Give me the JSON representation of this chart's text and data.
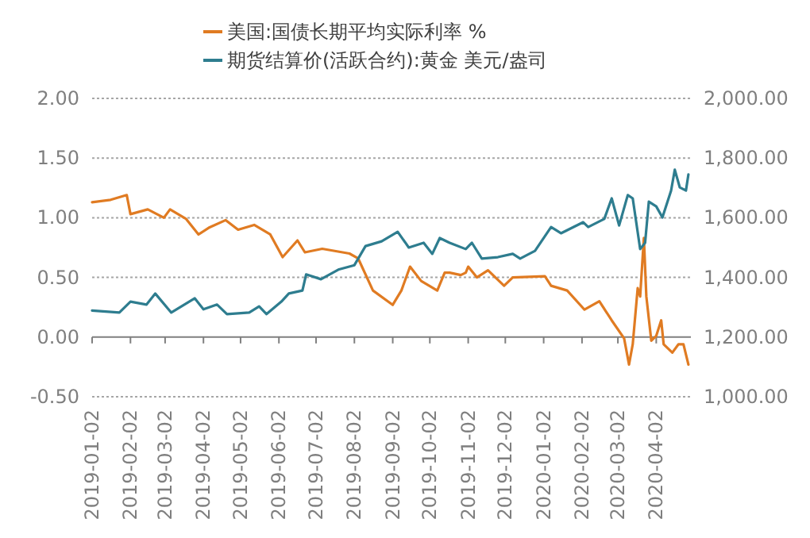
{
  "chart_data": {
    "type": "line",
    "legend": "top",
    "grid": "y",
    "line_style": "solid",
    "xlim": [
      "2019-01-02",
      "2020-04-30"
    ],
    "xticks": [
      "2019-01-02",
      "2019-02-02",
      "2019-03-02",
      "2019-04-02",
      "2019-05-02",
      "2019-06-02",
      "2019-07-02",
      "2019-08-02",
      "2019-09-02",
      "2019-10-02",
      "2019-11-02",
      "2019-12-02",
      "2020-01-02",
      "2020-02-02",
      "2020-03-02",
      "2020-04-02"
    ],
    "ylim": [
      -0.5,
      2
    ],
    "yticks": [
      {
        "value": -0.5,
        "label": "-0.50"
      },
      {
        "value": 0,
        "label": "0.00"
      },
      {
        "value": 0.5,
        "label": "0.50"
      },
      {
        "value": 1,
        "label": "1.00"
      },
      {
        "value": 1.5,
        "label": "1.50"
      },
      {
        "value": 2,
        "label": "2.00"
      }
    ],
    "y2lim": [
      1000,
      2000
    ],
    "y2ticks": [
      {
        "value": 1000,
        "label": "1,000.00"
      },
      {
        "value": 1200,
        "label": "1,200.00"
      },
      {
        "value": 1400,
        "label": "1,400.00"
      },
      {
        "value": 1600,
        "label": "1,600.00"
      },
      {
        "value": 1800,
        "label": "1,800.00"
      },
      {
        "value": 2000,
        "label": "2,000.00"
      }
    ],
    "series": [
      {
        "name": "美国:国债长期平均实际利率 %",
        "color": "#e07b22",
        "x": [
          "2019-01-02",
          "2019-01-17",
          "2019-01-30",
          "2019-02-02",
          "2019-02-16",
          "2019-03-01",
          "2019-03-06",
          "2019-03-19",
          "2019-03-29",
          "2019-04-07",
          "2019-04-20",
          "2019-04-30",
          "2019-05-13",
          "2019-05-26",
          "2019-06-05",
          "2019-06-17",
          "2019-06-23",
          "2019-07-07",
          "2019-07-29",
          "2019-08-05",
          "2019-08-17",
          "2019-09-02",
          "2019-09-09",
          "2019-09-16",
          "2019-09-25",
          "2019-10-08",
          "2019-10-14",
          "2019-10-18",
          "2019-10-27",
          "2019-10-31",
          "2019-11-02",
          "2019-11-09",
          "2019-11-18",
          "2019-12-01",
          "2019-12-08",
          "2020-01-03",
          "2020-01-08",
          "2020-01-21",
          "2020-02-04",
          "2020-02-16",
          "2020-02-26",
          "2020-03-07",
          "2020-03-11",
          "2020-03-14",
          "2020-03-18",
          "2020-03-20",
          "2020-03-23",
          "2020-03-25",
          "2020-03-29",
          "2020-04-02",
          "2020-04-06",
          "2020-04-08",
          "2020-04-15",
          "2020-04-20",
          "2020-04-24",
          "2020-04-28"
        ],
        "values": [
          1.13,
          1.15,
          1.19,
          1.03,
          1.07,
          1.0,
          1.07,
          0.99,
          0.86,
          0.92,
          0.98,
          0.9,
          0.94,
          0.86,
          0.67,
          0.81,
          0.71,
          0.74,
          0.7,
          0.66,
          0.39,
          0.27,
          0.39,
          0.59,
          0.47,
          0.39,
          0.54,
          0.54,
          0.52,
          0.54,
          0.59,
          0.5,
          0.56,
          0.43,
          0.5,
          0.51,
          0.43,
          0.39,
          0.23,
          0.3,
          0.14,
          -0.01,
          -0.23,
          -0.06,
          0.41,
          0.34,
          0.83,
          0.34,
          -0.03,
          0.01,
          0.14,
          -0.06,
          -0.13,
          -0.06,
          -0.06,
          -0.23
        ]
      },
      {
        "name": "期货结算价(活跃合约):黄金 美元/盎司",
        "color": "#2e7d8f",
        "axis": "y2",
        "x": [
          "2019-01-02",
          "2019-01-24",
          "2019-02-02",
          "2019-02-15",
          "2019-02-22",
          "2019-03-07",
          "2019-03-26",
          "2019-04-02",
          "2019-04-13",
          "2019-04-21",
          "2019-05-09",
          "2019-05-17",
          "2019-05-23",
          "2019-06-04",
          "2019-06-10",
          "2019-06-21",
          "2019-06-24",
          "2019-07-06",
          "2019-07-20",
          "2019-08-02",
          "2019-08-11",
          "2019-08-24",
          "2019-09-06",
          "2019-09-15",
          "2019-09-27",
          "2019-10-04",
          "2019-10-10",
          "2019-10-18",
          "2019-10-31",
          "2019-11-05",
          "2019-11-13",
          "2019-11-26",
          "2019-12-08",
          "2019-12-14",
          "2019-12-26",
          "2020-01-08",
          "2020-01-16",
          "2020-02-03",
          "2020-02-07",
          "2020-02-20",
          "2020-02-26",
          "2020-03-03",
          "2020-03-10",
          "2020-03-14",
          "2020-03-20",
          "2020-03-24",
          "2020-03-27",
          "2020-04-02",
          "2020-04-07",
          "2020-04-14",
          "2020-04-17",
          "2020-04-21",
          "2020-04-26",
          "2020-04-28"
        ],
        "values": [
          1289,
          1282,
          1319,
          1309,
          1346,
          1282,
          1330,
          1293,
          1309,
          1277,
          1282,
          1303,
          1277,
          1319,
          1346,
          1356,
          1410,
          1394,
          1426,
          1441,
          1505,
          1521,
          1553,
          1500,
          1516,
          1479,
          1532,
          1516,
          1495,
          1516,
          1463,
          1468,
          1479,
          1463,
          1489,
          1569,
          1548,
          1585,
          1569,
          1596,
          1665,
          1574,
          1676,
          1665,
          1495,
          1516,
          1654,
          1638,
          1601,
          1691,
          1761,
          1702,
          1691,
          1745
        ]
      }
    ]
  }
}
